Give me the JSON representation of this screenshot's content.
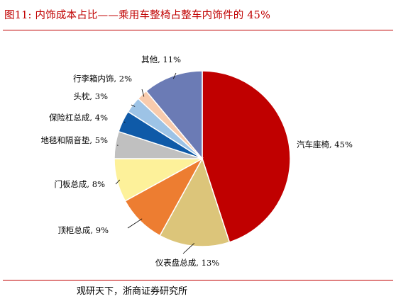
{
  "header": {
    "title": "图11:  内饰成本占比——乘用车整椅占整车内饰件的 45%"
  },
  "footer": {
    "source": "观研天下，浙商证券研究所"
  },
  "chart_data": {
    "type": "pie",
    "title": "图11:  内饰成本占比——乘用车整椅占整车内饰件的 45%",
    "start": "12 o'clock",
    "direction": "clockwise",
    "slices": [
      {
        "label": "汽车座椅, 45%",
        "name": "汽车座椅",
        "value": 45,
        "color": "#c00000"
      },
      {
        "label": "仪表盘总成, 13%",
        "name": "仪表盘总成",
        "value": 13,
        "color": "#dcc57a"
      },
      {
        "label": "顶柜总成, 9%",
        "name": "顶柜总成",
        "value": 9,
        "color": "#ed7d31"
      },
      {
        "label": "门板总成, 8%",
        "name": "门板总成",
        "value": 8,
        "color": "#fdf19a"
      },
      {
        "label": "地毯和隔音垫, 5%",
        "name": "地毯和隔音垫",
        "value": 5,
        "color": "#c0c0c0"
      },
      {
        "label": "保险杠总成, 4%",
        "name": "保险杠总成",
        "value": 4,
        "color": "#0f5aa8"
      },
      {
        "label": "头枕, 3%",
        "name": "头枕",
        "value": 3,
        "color": "#9dc3e6"
      },
      {
        "label": "行李箱内饰, 2%",
        "name": "行李箱内饰",
        "value": 2,
        "color": "#f8cbad"
      },
      {
        "label": "其他, 11%",
        "name": "其他",
        "value": 11,
        "color": "#6b7bb5"
      }
    ]
  }
}
